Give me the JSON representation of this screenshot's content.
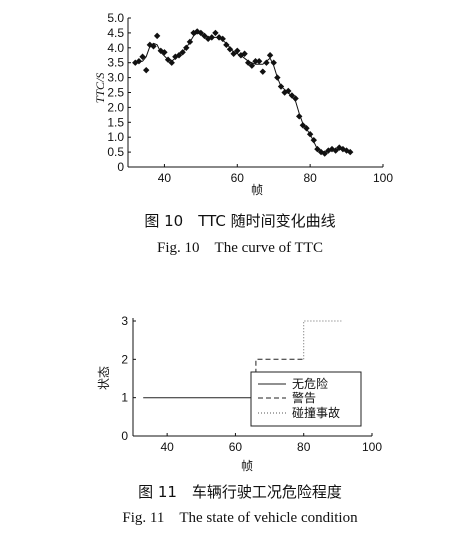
{
  "chart_data": [
    {
      "type": "scatter",
      "xlabel": "帧",
      "ylabel": "TTC/S",
      "xlim": [
        30,
        100
      ],
      "ylim": [
        0,
        5
      ],
      "xticks": [
        "40",
        "60",
        "80",
        "100"
      ],
      "yticks": [
        "0",
        "0.5",
        "1.0",
        "1.5",
        "2.0",
        "2.5",
        "3.0",
        "3.5",
        "4.0",
        "4.5",
        "5.0"
      ],
      "grid": false,
      "points": [
        [
          32,
          3.5
        ],
        [
          33,
          3.55
        ],
        [
          34,
          3.7
        ],
        [
          35,
          3.25
        ],
        [
          36,
          4.1
        ],
        [
          37,
          4.05
        ],
        [
          38,
          4.4
        ],
        [
          39,
          3.9
        ],
        [
          40,
          3.85
        ],
        [
          41,
          3.6
        ],
        [
          42,
          3.5
        ],
        [
          43,
          3.7
        ],
        [
          44,
          3.75
        ],
        [
          45,
          3.85
        ],
        [
          46,
          4.0
        ],
        [
          47,
          4.2
        ],
        [
          48,
          4.5
        ],
        [
          49,
          4.55
        ],
        [
          50,
          4.5
        ],
        [
          51,
          4.4
        ],
        [
          52,
          4.3
        ],
        [
          53,
          4.35
        ],
        [
          54,
          4.5
        ],
        [
          55,
          4.35
        ],
        [
          56,
          4.3
        ],
        [
          57,
          4.1
        ],
        [
          58,
          3.95
        ],
        [
          59,
          3.8
        ],
        [
          60,
          3.9
        ],
        [
          61,
          3.75
        ],
        [
          62,
          3.8
        ],
        [
          63,
          3.5
        ],
        [
          64,
          3.4
        ],
        [
          65,
          3.55
        ],
        [
          66,
          3.55
        ],
        [
          67,
          3.2
        ],
        [
          68,
          3.5
        ],
        [
          69,
          3.75
        ],
        [
          70,
          3.5
        ],
        [
          71,
          3.0
        ],
        [
          72,
          2.7
        ],
        [
          73,
          2.5
        ],
        [
          74,
          2.55
        ],
        [
          75,
          2.4
        ],
        [
          76,
          2.3
        ],
        [
          77,
          1.7
        ],
        [
          78,
          1.4
        ],
        [
          79,
          1.3
        ],
        [
          80,
          1.1
        ],
        [
          81,
          0.9
        ],
        [
          82,
          0.6
        ],
        [
          83,
          0.5
        ],
        [
          84,
          0.45
        ],
        [
          85,
          0.55
        ],
        [
          86,
          0.6
        ],
        [
          87,
          0.55
        ],
        [
          88,
          0.65
        ],
        [
          89,
          0.6
        ],
        [
          90,
          0.55
        ],
        [
          91,
          0.5
        ]
      ],
      "curve": [
        [
          32,
          3.5
        ],
        [
          34,
          3.55
        ],
        [
          35,
          3.7
        ],
        [
          36,
          4.05
        ],
        [
          37,
          4.15
        ],
        [
          38,
          4.1
        ],
        [
          39,
          3.85
        ],
        [
          41,
          3.6
        ],
        [
          42,
          3.55
        ],
        [
          44,
          3.75
        ],
        [
          46,
          4.0
        ],
        [
          48,
          4.4
        ],
        [
          49,
          4.5
        ],
        [
          51,
          4.4
        ],
        [
          53,
          4.35
        ],
        [
          55,
          4.35
        ],
        [
          57,
          4.15
        ],
        [
          59,
          3.85
        ],
        [
          61,
          3.75
        ],
        [
          63,
          3.55
        ],
        [
          65,
          3.45
        ],
        [
          67,
          3.45
        ],
        [
          68,
          3.55
        ],
        [
          69,
          3.65
        ],
        [
          70,
          3.4
        ],
        [
          71,
          3.0
        ],
        [
          72,
          2.7
        ],
        [
          74,
          2.5
        ],
        [
          76,
          2.2
        ],
        [
          77,
          1.8
        ],
        [
          78,
          1.45
        ],
        [
          80,
          1.1
        ],
        [
          81,
          0.85
        ],
        [
          82,
          0.6
        ],
        [
          84,
          0.5
        ],
        [
          86,
          0.55
        ],
        [
          88,
          0.6
        ],
        [
          91,
          0.55
        ]
      ],
      "caption_cn": "图 10　TTC 随时间变化曲线",
      "caption_en": "Fig. 10　The curve of TTC",
      "color": "#111111"
    },
    {
      "type": "line",
      "xlabel": "帧",
      "ylabel": "状态",
      "xlim": [
        30,
        100
      ],
      "ylim": [
        0,
        3
      ],
      "xticks": [
        "40",
        "60",
        "80",
        "100"
      ],
      "yticks": [
        "0",
        "1",
        "2",
        "3"
      ],
      "grid": false,
      "legend_position": "bottom-right",
      "series": [
        {
          "name": "无危险",
          "style": "solid",
          "x": [
            33,
            66
          ],
          "y": [
            1,
            1
          ]
        },
        {
          "name": "警告",
          "style": "dashed",
          "x": [
            66,
            66,
            80,
            80
          ],
          "y": [
            1,
            2,
            2,
            2
          ]
        },
        {
          "name": "碰撞事故",
          "style": "dotted",
          "x": [
            80,
            80,
            91
          ],
          "y": [
            2,
            3,
            3
          ]
        }
      ],
      "caption_cn": "图 11　车辆行驶工况危险程度",
      "caption_en": "Fig. 11　The state of vehicle condition",
      "color": "#111111"
    }
  ]
}
